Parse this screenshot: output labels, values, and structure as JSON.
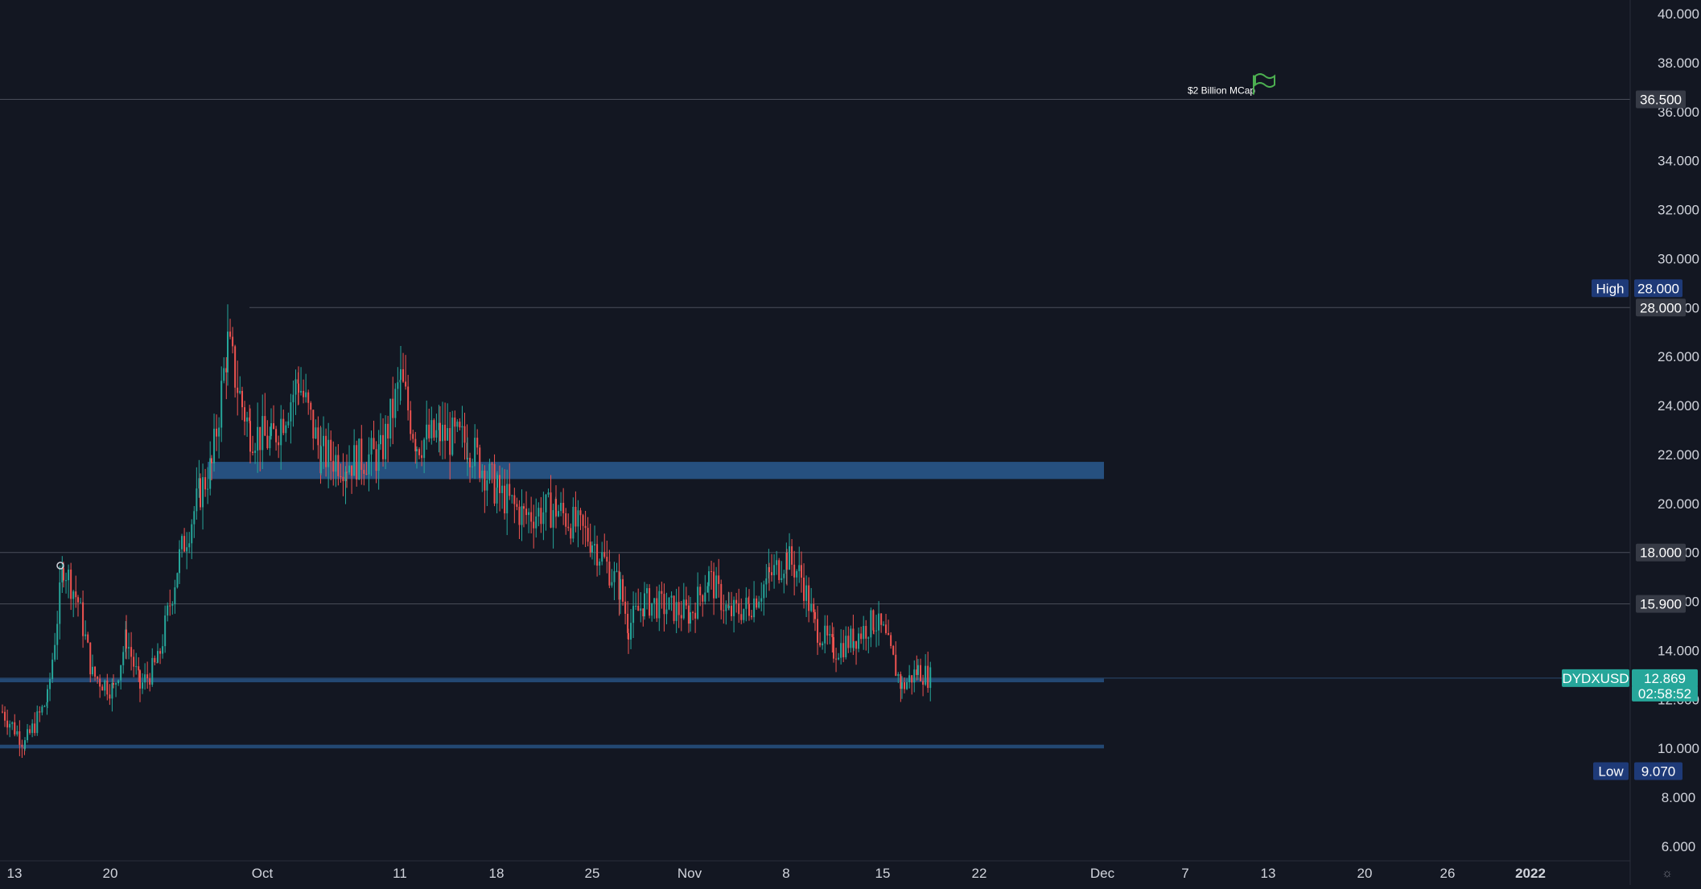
{
  "symbol": "DYDXUSD",
  "colors": {
    "background": "#131722",
    "up": "#26a69a",
    "down": "#ef5350",
    "zone": "#2a5a8f",
    "high_low_bg": "#1e3a78",
    "price_bg": "#26a69a",
    "label_bg": "#363a45"
  },
  "price_axis": {
    "ticks": [
      "40.000",
      "38.000",
      "36.000",
      "34.000",
      "32.000",
      "30.000",
      "28.000",
      "26.000",
      "24.000",
      "22.000",
      "20.000",
      "18.000",
      "16.000",
      "14.000",
      "12.000",
      "10.000",
      "8.000",
      "6.000"
    ]
  },
  "time_axis": {
    "ticks": [
      "13",
      "20",
      "Oct",
      "11",
      "18",
      "25",
      "Nov",
      "8",
      "15",
      "22",
      "Dec",
      "7",
      "13",
      "20",
      "26",
      "2022"
    ]
  },
  "labels": {
    "high_tag": "High",
    "high_value": "28.000",
    "low_tag": "Low",
    "low_value": "9.070",
    "last_price": "12.869",
    "countdown": "02:58:52",
    "level_36500": "36.500",
    "level_28000": "28.000",
    "level_18000": "18.000",
    "level_15900": "15.900",
    "annotation": "$2 Billion MCap"
  },
  "chart_data": {
    "type": "candlestick",
    "symbol": "DYDXUSD",
    "y_range": [
      5.5,
      40.5
    ],
    "x_ticks": [
      "13",
      "20",
      "Oct",
      "11",
      "18",
      "25",
      "Nov",
      "8",
      "15",
      "22",
      "Dec",
      "7",
      "13",
      "20",
      "26",
      "2022"
    ],
    "y_ticks": [
      40,
      38,
      36,
      34,
      32,
      30,
      28,
      26,
      24,
      22,
      20,
      18,
      16,
      14,
      12,
      10,
      8,
      6
    ],
    "horizontal_levels": [
      36.5,
      28.0,
      18.0,
      15.9,
      12.869
    ],
    "zones": [
      {
        "from": 21.0,
        "to": 21.7
      },
      {
        "from": 12.7,
        "to": 12.85
      },
      {
        "from": 10.0,
        "to": 10.15
      }
    ],
    "last_price": 12.869,
    "high": 28.0,
    "low": 9.07,
    "annotation": {
      "text": "$2 Billion MCap",
      "price": 36.5
    },
    "close_path": [
      {
        "t": "13",
        "close": 11.5
      },
      {
        "t": "15",
        "close": 10.2
      },
      {
        "t": "17",
        "close": 12.0
      },
      {
        "t": "18",
        "close": 17.5
      },
      {
        "t": "19",
        "close": 16.0
      },
      {
        "t": "20",
        "close": 13.0
      },
      {
        "t": "21",
        "close": 12.4
      },
      {
        "t": "22",
        "close": 14.5
      },
      {
        "t": "23",
        "close": 12.5
      },
      {
        "t": "24",
        "close": 13.5
      },
      {
        "t": "25",
        "close": 17.8
      },
      {
        "t": "26",
        "close": 20.5
      },
      {
        "t": "27",
        "close": 21.5
      },
      {
        "t": "28",
        "close": 26.5
      },
      {
        "t": "29",
        "close": 24.0
      },
      {
        "t": "Oct",
        "close": 23.0
      },
      {
        "t": "3",
        "close": 22.5
      },
      {
        "t": "4",
        "close": 25.0
      },
      {
        "t": "6",
        "close": 22.0
      },
      {
        "t": "8",
        "close": 21.7
      },
      {
        "t": "10",
        "close": 22.0
      },
      {
        "t": "11",
        "close": 25.0
      },
      {
        "t": "12",
        "close": 22.5
      },
      {
        "t": "14",
        "close": 22.8
      },
      {
        "t": "16",
        "close": 22.5
      },
      {
        "t": "18",
        "close": 20.5
      },
      {
        "t": "20",
        "close": 19.5
      },
      {
        "t": "22",
        "close": 19.8
      },
      {
        "t": "24",
        "close": 18.5
      },
      {
        "t": "26",
        "close": 16.5
      },
      {
        "t": "27",
        "close": 15.0
      },
      {
        "t": "29",
        "close": 16.0
      },
      {
        "t": "Nov",
        "close": 15.5
      },
      {
        "t": "2",
        "close": 17.0
      },
      {
        "t": "4",
        "close": 15.5
      },
      {
        "t": "6",
        "close": 15.8
      },
      {
        "t": "7",
        "close": 17.0
      },
      {
        "t": "8",
        "close": 17.8
      },
      {
        "t": "9",
        "close": 17.0
      },
      {
        "t": "10",
        "close": 15.0
      },
      {
        "t": "11",
        "close": 14.0
      },
      {
        "t": "13",
        "close": 14.5
      },
      {
        "t": "14",
        "close": 15.2
      },
      {
        "t": "15",
        "close": 14.7
      },
      {
        "t": "16",
        "close": 12.5
      },
      {
        "t": "17",
        "close": 13.2
      },
      {
        "t": "18",
        "close": 12.869
      }
    ]
  }
}
